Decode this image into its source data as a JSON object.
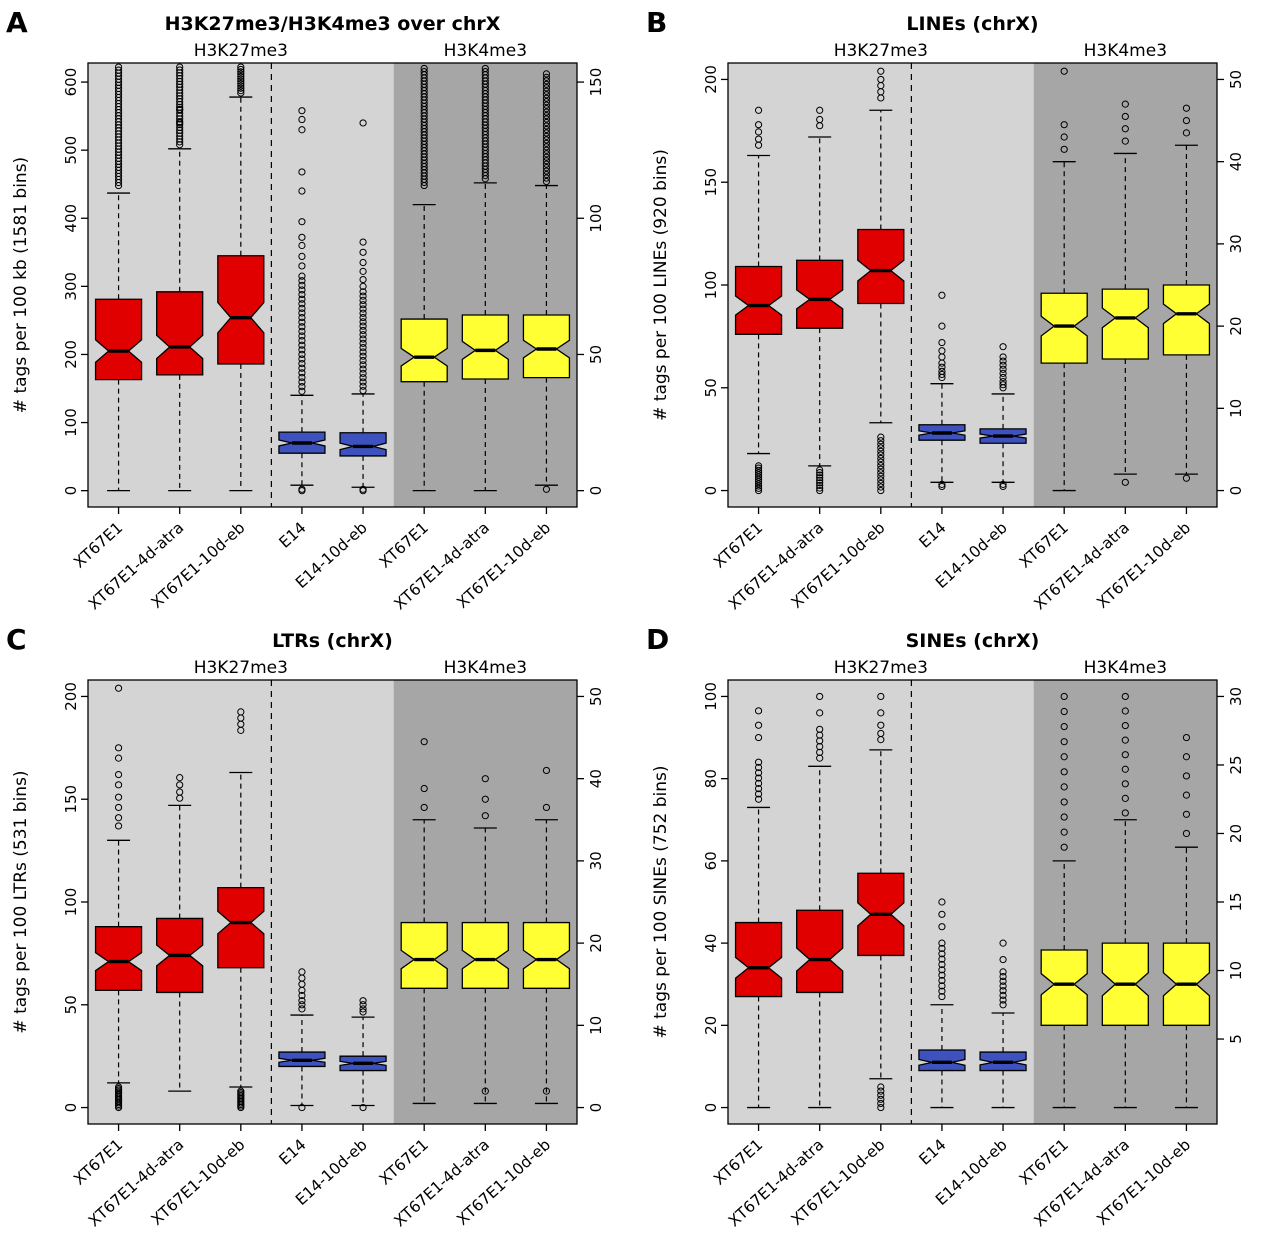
{
  "chart_data": {
    "type": "boxplot",
    "layout": "2x2-grid",
    "notched": true,
    "colors": {
      "h3k27_treated": "#e00000",
      "h3k27_control": "#3d52bf",
      "h3k4": "#ffff33",
      "bg_light": "#d4d4d4",
      "bg_dark": "#a6a6a6"
    },
    "panels": [
      {
        "label": "A",
        "title": "H3K27me3/H3K4me3 over chrX",
        "ylabel": "# tags per 100 kb (1581 bins)",
        "left_axis": {
          "lim": [
            -24,
            628
          ],
          "ticks": [
            0,
            100,
            200,
            300,
            400,
            500,
            600
          ]
        },
        "right_axis": {
          "lim": [
            -6,
            157
          ],
          "ticks": [
            0,
            50,
            100,
            150
          ]
        },
        "sections": [
          {
            "label": "H3K27me3",
            "cols": 5,
            "bg": "#d4d4d4"
          },
          {
            "label": "H3K4me3",
            "cols": 3,
            "bg": "#a6a6a6"
          }
        ],
        "separator_after_col": 3,
        "boxes": [
          {
            "category": "XT67E1",
            "color": "#e00000",
            "axis": "left",
            "low": 0,
            "q1": 163,
            "med": 205,
            "q3": 281,
            "high": 437,
            "outliers": [],
            "runs": [
              {
                "min": 448,
                "max": 622,
                "count": 40
              }
            ]
          },
          {
            "category": "XT67E1-4d-atra",
            "color": "#e00000",
            "axis": "left",
            "low": 0,
            "q1": 170,
            "med": 211,
            "q3": 292,
            "high": 502,
            "outliers": [
              540,
              560
            ],
            "runs": [
              {
                "min": 508,
                "max": 622,
                "count": 28
              }
            ]
          },
          {
            "category": "XT67E1-10d-eb",
            "color": "#e00000",
            "axis": "left",
            "low": 0,
            "q1": 186,
            "med": 254,
            "q3": 345,
            "high": 578,
            "outliers": [],
            "runs": [
              {
                "min": 584,
                "max": 622,
                "count": 12
              }
            ]
          },
          {
            "category": "E14",
            "color": "#3d52bf",
            "axis": "left",
            "low": 8,
            "q1": 55,
            "med": 70,
            "q3": 86,
            "high": 140,
            "outliers": [
              330,
              344,
              360,
              372,
              395,
              440,
              468,
              530,
              545,
              558,
              0,
              2
            ],
            "runs": [
              {
                "min": 146,
                "max": 315,
                "count": 26
              }
            ]
          },
          {
            "category": "E14-10d-eb",
            "color": "#3d52bf",
            "axis": "left",
            "low": 5,
            "q1": 51,
            "med": 65,
            "q3": 85,
            "high": 142,
            "outliers": [
              300,
              310,
              322,
              335,
              350,
              365,
              540,
              0,
              2
            ],
            "runs": [
              {
                "min": 147,
                "max": 292,
                "count": 24
              }
            ]
          },
          {
            "category": "XT67E1",
            "color": "#ffff33",
            "axis": "right",
            "low": 0,
            "q1": 40,
            "med": 49,
            "q3": 63,
            "high": 105,
            "outliers": [],
            "runs": [
              {
                "min": 112,
                "max": 155,
                "count": 38
              }
            ]
          },
          {
            "category": "XT67E1-4d-atra",
            "color": "#ffff33",
            "axis": "right",
            "low": 0,
            "q1": 41,
            "med": 51.5,
            "q3": 64.5,
            "high": 113,
            "outliers": [],
            "runs": [
              {
                "min": 114.5,
                "max": 155,
                "count": 36
              }
            ]
          },
          {
            "category": "XT67E1-10d-eb",
            "color": "#ffff33",
            "axis": "right",
            "low": 2,
            "q1": 41.5,
            "med": 52,
            "q3": 64.5,
            "high": 112,
            "outliers": [
              0.5
            ],
            "runs": [
              {
                "min": 113.5,
                "max": 153,
                "count": 32
              }
            ]
          }
        ]
      },
      {
        "label": "B",
        "title": "LINEs (chrX)",
        "ylabel": "# tags per 100 LINEs (920 bins)",
        "left_axis": {
          "lim": [
            -8,
            208
          ],
          "ticks": [
            0,
            50,
            100,
            150,
            200
          ]
        },
        "right_axis": {
          "lim": [
            -2,
            52
          ],
          "ticks": [
            0,
            10,
            20,
            30,
            40,
            50
          ]
        },
        "sections": [
          {
            "label": "H3K27me3",
            "cols": 5,
            "bg": "#d4d4d4"
          },
          {
            "label": "H3K4me3",
            "cols": 3,
            "bg": "#a6a6a6"
          }
        ],
        "separator_after_col": 3,
        "boxes": [
          {
            "category": "XT67E1",
            "color": "#e00000",
            "axis": "left",
            "low": 18,
            "q1": 76,
            "med": 90,
            "q3": 109,
            "high": 163,
            "outliers": [
              168,
              171,
              174.5,
              178,
              185
            ],
            "runs": [
              {
                "min": 0,
                "max": 12,
                "count": 12
              }
            ]
          },
          {
            "category": "XT67E1-4d-atra",
            "color": "#e00000",
            "axis": "left",
            "low": 12,
            "q1": 79,
            "med": 93,
            "q3": 112,
            "high": 172,
            "outliers": [
              177.5,
              180.5,
              185
            ],
            "runs": [
              {
                "min": 0,
                "max": 10,
                "count": 9
              }
            ]
          },
          {
            "category": "XT67E1-10d-eb",
            "color": "#e00000",
            "axis": "left",
            "low": 33,
            "q1": 91,
            "med": 107,
            "q3": 127,
            "high": 185,
            "outliers": [
              191,
              194,
              197,
              200,
              204
            ],
            "runs": [
              {
                "min": 0,
                "max": 26,
                "count": 16
              }
            ]
          },
          {
            "category": "E14",
            "color": "#3d52bf",
            "axis": "left",
            "low": 4,
            "q1": 24.5,
            "med": 28,
            "q3": 32,
            "high": 52,
            "outliers": [
              55,
              56.5,
              58,
              60,
              62,
              65,
              68,
              72,
              80,
              95,
              2,
              3
            ],
            "runs": []
          },
          {
            "category": "E14-10d-eb",
            "color": "#3d52bf",
            "axis": "left",
            "low": 4,
            "q1": 23,
            "med": 26.5,
            "q3": 30,
            "high": 47,
            "outliers": [
              50,
              51.5,
              53,
              55,
              57,
              59,
              61,
              63,
              65,
              70,
              2,
              3
            ],
            "runs": []
          },
          {
            "category": "XT67E1",
            "color": "#ffff33",
            "axis": "right",
            "low": 0,
            "q1": 15.5,
            "med": 20,
            "q3": 24,
            "high": 40,
            "outliers": [
              41.5,
              43,
              44.5,
              51
            ],
            "runs": []
          },
          {
            "category": "XT67E1-4d-atra",
            "color": "#ffff33",
            "axis": "right",
            "low": 2,
            "q1": 16,
            "med": 21,
            "q3": 24.5,
            "high": 41,
            "outliers": [
              42.5,
              44,
              45.5,
              47,
              1
            ],
            "runs": []
          },
          {
            "category": "XT67E1-10d-eb",
            "color": "#ffff33",
            "axis": "right",
            "low": 2,
            "q1": 16.5,
            "med": 21.5,
            "q3": 25,
            "high": 42,
            "outliers": [
              43.5,
              45,
              46.5,
              1.5
            ],
            "runs": []
          }
        ]
      },
      {
        "label": "C",
        "title": "LTRs (chrX)",
        "ylabel": "# tags per 100 LTRs (531 bins)",
        "left_axis": {
          "lim": [
            -8,
            208
          ],
          "ticks": [
            0,
            50,
            100,
            150,
            200
          ]
        },
        "right_axis": {
          "lim": [
            -2,
            52
          ],
          "ticks": [
            0,
            10,
            20,
            30,
            40,
            50
          ]
        },
        "sections": [
          {
            "label": "H3K27me3",
            "cols": 5,
            "bg": "#d4d4d4"
          },
          {
            "label": "H3K4me3",
            "cols": 3,
            "bg": "#a6a6a6"
          }
        ],
        "separator_after_col": 3,
        "boxes": [
          {
            "category": "XT67E1",
            "color": "#e00000",
            "axis": "left",
            "low": 12,
            "q1": 57,
            "med": 71,
            "q3": 88,
            "high": 130,
            "outliers": [
              137,
              141,
              146,
              151,
              157,
              162,
              170,
              175,
              204
            ],
            "runs": [
              {
                "min": 0,
                "max": 10,
                "count": 14
              }
            ]
          },
          {
            "category": "XT67E1-4d-atra",
            "color": "#e00000",
            "axis": "left",
            "low": 8,
            "q1": 56,
            "med": 74,
            "q3": 92,
            "high": 147,
            "outliers": [
              150.5,
              153.5,
              157,
              160.5
            ],
            "runs": []
          },
          {
            "category": "XT67E1-10d-eb",
            "color": "#e00000",
            "axis": "left",
            "low": 10,
            "q1": 68,
            "med": 90,
            "q3": 107,
            "high": 163,
            "outliers": [
              183.5,
              186.5,
              189.5,
              192.5
            ],
            "runs": [
              {
                "min": 0,
                "max": 8,
                "count": 12
              }
            ]
          },
          {
            "category": "E14",
            "color": "#3d52bf",
            "axis": "left",
            "low": 1,
            "q1": 20,
            "med": 23,
            "q3": 27,
            "high": 45,
            "outliers": [
              48,
              50,
              52,
              54.5,
              57,
              60,
              63,
              66,
              0
            ],
            "runs": []
          },
          {
            "category": "E14-10d-eb",
            "color": "#3d52bf",
            "axis": "left",
            "low": 1,
            "q1": 18,
            "med": 21.5,
            "q3": 25,
            "high": 44,
            "outliers": [
              46.5,
              48,
              50,
              52,
              0
            ],
            "runs": []
          },
          {
            "category": "XT67E1",
            "color": "#ffff33",
            "axis": "right",
            "low": 0.5,
            "q1": 14.5,
            "med": 18,
            "q3": 22.5,
            "high": 35,
            "outliers": [
              36.5,
              38.8,
              44.5
            ],
            "runs": []
          },
          {
            "category": "XT67E1-4d-atra",
            "color": "#ffff33",
            "axis": "right",
            "low": 0.5,
            "q1": 14.5,
            "med": 18,
            "q3": 22.5,
            "high": 34,
            "outliers": [
              35.5,
              37.5,
              40,
              2
            ],
            "runs": []
          },
          {
            "category": "XT67E1-10d-eb",
            "color": "#ffff33",
            "axis": "right",
            "low": 0.5,
            "q1": 14.5,
            "med": 18,
            "q3": 22.5,
            "high": 35,
            "outliers": [
              36.5,
              41,
              2
            ],
            "runs": []
          }
        ]
      },
      {
        "label": "D",
        "title": "SINEs (chrX)",
        "ylabel": "# tags per 100 SINEs (752 bins)",
        "left_axis": {
          "lim": [
            -4,
            104
          ],
          "ticks": [
            0,
            20,
            40,
            60,
            80,
            100
          ]
        },
        "right_axis": {
          "lim": [
            -1.2,
            31.2
          ],
          "ticks": [
            5,
            10,
            15,
            20,
            25,
            30
          ]
        },
        "sections": [
          {
            "label": "H3K27me3",
            "cols": 5,
            "bg": "#d4d4d4"
          },
          {
            "label": "H3K4me3",
            "cols": 3,
            "bg": "#a6a6a6"
          }
        ],
        "separator_after_col": 3,
        "boxes": [
          {
            "category": "XT67E1",
            "color": "#e00000",
            "axis": "left",
            "low": 0,
            "q1": 27,
            "med": 34,
            "q3": 45,
            "high": 73,
            "outliers": [
              90,
              93,
              96.5
            ],
            "runs": [
              {
                "min": 75,
                "max": 84,
                "count": 8
              }
            ]
          },
          {
            "category": "XT67E1-4d-atra",
            "color": "#e00000",
            "axis": "left",
            "low": 0,
            "q1": 28,
            "med": 36,
            "q3": 48,
            "high": 83,
            "outliers": [
              96,
              100
            ],
            "runs": [
              {
                "min": 85,
                "max": 92,
                "count": 6
              }
            ]
          },
          {
            "category": "XT67E1-10d-eb",
            "color": "#e00000",
            "axis": "left",
            "low": 7,
            "q1": 37,
            "med": 47,
            "q3": 57,
            "high": 87,
            "outliers": [
              89.5,
              91,
              93,
              96,
              100
            ],
            "runs": [
              {
                "min": 0,
                "max": 5,
                "count": 6
              }
            ]
          },
          {
            "category": "E14",
            "color": "#3d52bf",
            "axis": "left",
            "low": 0,
            "q1": 9,
            "med": 11,
            "q3": 14,
            "high": 25,
            "outliers": [
              44,
              47,
              50
            ],
            "runs": [
              {
                "min": 27,
                "max": 40,
                "count": 11
              }
            ]
          },
          {
            "category": "E14-10d-eb",
            "color": "#3d52bf",
            "axis": "left",
            "low": 0,
            "q1": 9,
            "med": 11,
            "q3": 13.5,
            "high": 23,
            "outliers": [
              36,
              40
            ],
            "runs": [
              {
                "min": 25,
                "max": 33,
                "count": 8
              }
            ]
          },
          {
            "category": "XT67E1",
            "color": "#ffff33",
            "axis": "right",
            "low": 0,
            "q1": 6,
            "med": 9,
            "q3": 11.5,
            "high": 18,
            "outliers": [],
            "runs": [
              {
                "min": 19,
                "max": 30,
                "count": 11
              }
            ]
          },
          {
            "category": "XT67E1-4d-atra",
            "color": "#ffff33",
            "axis": "right",
            "low": 0,
            "q1": 6,
            "med": 9,
            "q3": 12,
            "high": 21,
            "outliers": [],
            "runs": [
              {
                "min": 21.5,
                "max": 30,
                "count": 9
              }
            ]
          },
          {
            "category": "XT67E1-10d-eb",
            "color": "#ffff33",
            "axis": "right",
            "low": 0,
            "q1": 6,
            "med": 9,
            "q3": 12,
            "high": 19,
            "outliers": [],
            "runs": [
              {
                "min": 20,
                "max": 27,
                "count": 6
              }
            ]
          }
        ]
      }
    ]
  }
}
